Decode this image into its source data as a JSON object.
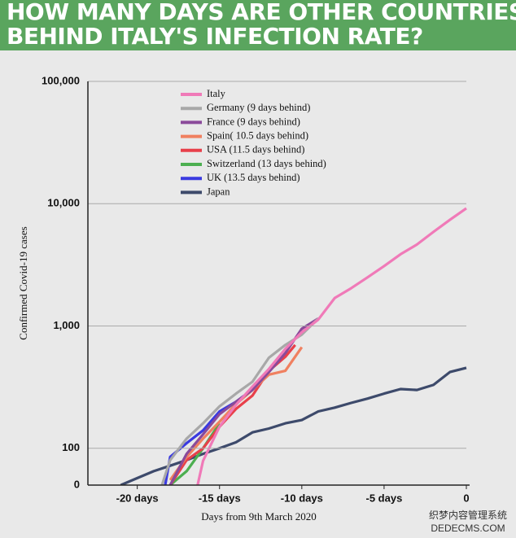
{
  "chart_data": {
    "type": "line",
    "title": [
      "HOW MANY DAYS ARE OTHER COUNTRIES",
      "BEHIND ITALY'S INFECTION RATE?"
    ],
    "xlabel": "Days from 9th March 2020",
    "ylabel": "Confirmed Covid-19 cases",
    "log_y": true,
    "grid": true,
    "legend": "upper left",
    "xlim": [
      -23,
      0
    ],
    "xticks": [
      {
        "value": -20,
        "label": "-20 days"
      },
      {
        "value": -15,
        "label": "-15 days"
      },
      {
        "value": -10,
        "label": "-10 days"
      },
      {
        "value": -5,
        "label": "-5 days"
      },
      0
    ],
    "ylim": [
      50,
      100000
    ],
    "yticks": [
      {
        "value": 100,
        "label": "100"
      },
      {
        "value": 1000,
        "label": "1,000"
      },
      {
        "value": 10000,
        "label": "10,000"
      },
      {
        "value": 100000,
        "label": "100,000"
      }
    ],
    "y_origin_label": "0",
    "watermark": [
      "织梦内容管理系统",
      "DEDECMS.COM"
    ],
    "series": [
      {
        "name": "Italy",
        "color": "#f07ab8",
        "x": [
          -17,
          -16,
          -15,
          -14,
          -13,
          -12,
          -11,
          -10,
          -9,
          -8,
          -7,
          -6,
          -5,
          -4,
          -3,
          -2,
          -1,
          0
        ],
        "values": [
          20,
          79,
          150,
          227,
          320,
          445,
          650,
          888,
          1128,
          1694,
          2036,
          2502,
          3089,
          3858,
          4636,
          5883,
          7375,
          9172
        ]
      },
      {
        "name": "Germany (9 days behind)",
        "color": "#a8a8a8",
        "x": [
          -18.5,
          -18,
          -17,
          -16,
          -15,
          -14,
          -13,
          -12,
          -11,
          -10,
          -9
        ],
        "values": [
          50,
          80,
          120,
          160,
          220,
          280,
          350,
          550,
          700,
          850,
          1150
        ]
      },
      {
        "name": "France (9 days behind)",
        "color": "#8a4a9a",
        "x": [
          -18,
          -17,
          -16,
          -15,
          -14,
          -13,
          -12,
          -11,
          -10,
          -9
        ],
        "values": [
          50,
          90,
          130,
          190,
          240,
          300,
          420,
          600,
          950,
          1150
        ]
      },
      {
        "name": "Spain( 10.5 days behind)",
        "color": "#f08060",
        "x": [
          -18,
          -17,
          -16,
          -15,
          -14,
          -13,
          -12,
          -11,
          -10
        ],
        "values": [
          55,
          85,
          120,
          165,
          230,
          300,
          400,
          430,
          670
        ]
      },
      {
        "name": "USA (11.5 days behind)",
        "color": "#e8404a",
        "x": [
          -18,
          -17,
          -16,
          -15,
          -14,
          -13,
          -12,
          -11,
          -10.4
        ],
        "values": [
          50,
          80,
          100,
          150,
          210,
          270,
          430,
          560,
          700
        ]
      },
      {
        "name": "Switzerland (13 days behind)",
        "color": "#4caf50",
        "x": [
          -18,
          -17,
          -16,
          -15
        ],
        "values": [
          50,
          65,
          100,
          160
        ]
      },
      {
        "name": "UK (13.5 days behind)",
        "color": "#3a3ae0",
        "x": [
          -18.3,
          -18,
          -17,
          -16,
          -15,
          -14,
          -13.5
        ],
        "values": [
          50,
          85,
          110,
          140,
          200,
          240,
          270
        ]
      },
      {
        "name": "Japan",
        "color": "#3d4a6b",
        "x": [
          -21,
          -20,
          -19,
          -18,
          -17,
          -16,
          -15,
          -14,
          -13,
          -12,
          -11,
          -10,
          -9,
          -8,
          -7,
          -6,
          -5,
          -4,
          -3,
          -2,
          -1,
          0
        ],
        "values": [
          50,
          57,
          65,
          72,
          80,
          90,
          100,
          112,
          135,
          145,
          160,
          170,
          200,
          215,
          235,
          255,
          280,
          305,
          300,
          330,
          420,
          455
        ]
      }
    ]
  }
}
